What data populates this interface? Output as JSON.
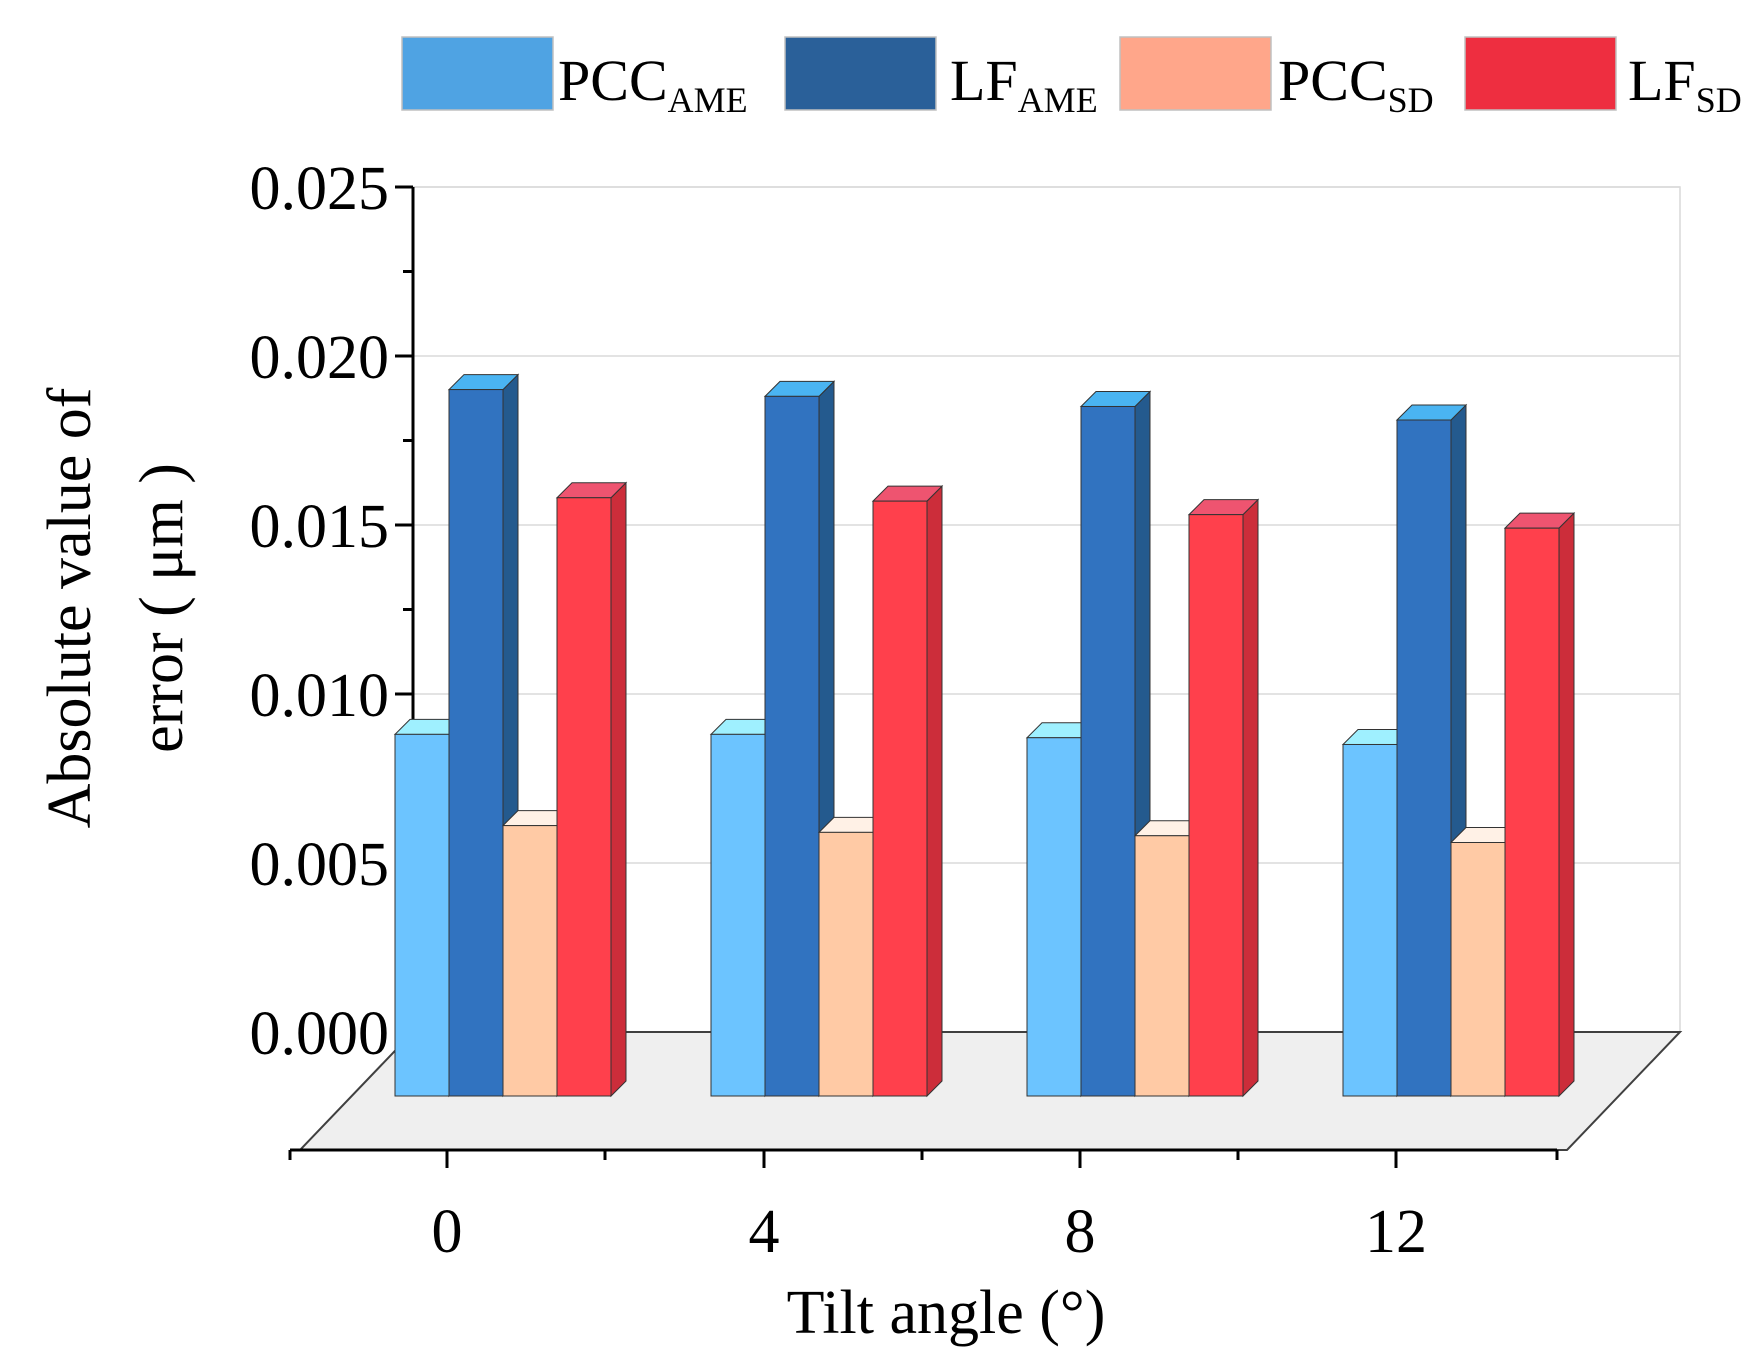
{
  "chart_data": {
    "type": "bar",
    "style": "3d-clustered",
    "title": "",
    "xlabel": "Tilt angle (°)",
    "ylabel_lines": [
      "Absolute value of",
      "error ( μm )"
    ],
    "categories": [
      "0",
      "4",
      "8",
      "12"
    ],
    "ylim": [
      0,
      0.025
    ],
    "yticks": [
      "0.000",
      "0.005",
      "0.010",
      "0.015",
      "0.020",
      "0.025"
    ],
    "grid": true,
    "legend_position": "top",
    "series": [
      {
        "name": "PCC",
        "sub": "AME",
        "values": [
          0.0107,
          0.0107,
          0.0106,
          0.0104
        ],
        "legend_color": "#4fa3e3",
        "front": "#6cc4ff",
        "top": "#9ff0ff",
        "side": "#4a9fd6"
      },
      {
        "name": "LF",
        "sub": "AME",
        "values": [
          0.0209,
          0.0207,
          0.0204,
          0.02
        ],
        "legend_color": "#2a6099",
        "front": "#3173c0",
        "top": "#4ab4f2",
        "side": "#245a8e"
      },
      {
        "name": "PCC",
        "sub": "SD",
        "values": [
          0.008,
          0.0078,
          0.0077,
          0.0075
        ],
        "legend_color": "#ffa68a",
        "front": "#ffcaa5",
        "top": "#fff1e6",
        "side": "#e8b08c"
      },
      {
        "name": "LF",
        "sub": "SD",
        "values": [
          0.0177,
          0.0176,
          0.0172,
          0.0168
        ],
        "legend_color": "#ee2e40",
        "front": "#ff404c",
        "top": "#ee5470",
        "side": "#cc2d3a"
      }
    ]
  }
}
